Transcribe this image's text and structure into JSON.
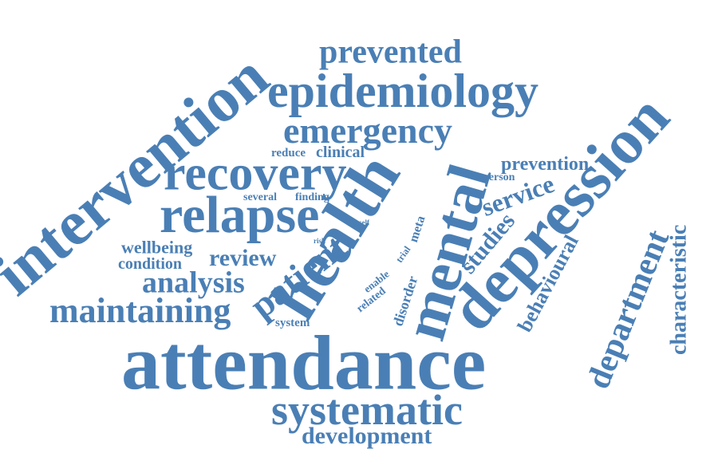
{
  "color": "#4a7fb5",
  "words": [
    {
      "id": "intervention",
      "text": "intervention"
    },
    {
      "id": "prevented",
      "text": "prevented"
    },
    {
      "id": "epidemiology",
      "text": "epidemiology"
    },
    {
      "id": "emergency",
      "text": "emergency"
    },
    {
      "id": "recovery",
      "text": "recovery"
    },
    {
      "id": "relapse",
      "text": "relapse"
    },
    {
      "id": "reduce",
      "text": "reduce"
    },
    {
      "id": "clinical",
      "text": "clinical"
    },
    {
      "id": "several",
      "text": "several"
    },
    {
      "id": "finding",
      "text": "finding"
    },
    {
      "id": "self",
      "text": "self"
    },
    {
      "id": "risk",
      "text": "risk"
    },
    {
      "id": "wellbeing",
      "text": "wellbeing"
    },
    {
      "id": "condition",
      "text": "condition"
    },
    {
      "id": "review",
      "text": "review"
    },
    {
      "id": "analysis",
      "text": "analysis"
    },
    {
      "id": "maintaining",
      "text": "maintaining"
    },
    {
      "id": "system",
      "text": "system"
    },
    {
      "id": "patient",
      "text": "patient"
    },
    {
      "id": "health",
      "text": "health"
    },
    {
      "id": "mental",
      "text": "mental"
    },
    {
      "id": "enable",
      "text": "enable"
    },
    {
      "id": "related",
      "text": "related"
    },
    {
      "id": "trial",
      "text": "trial"
    },
    {
      "id": "meta",
      "text": "meta"
    },
    {
      "id": "disorder",
      "text": "disorder"
    },
    {
      "id": "prevention",
      "text": "prevention"
    },
    {
      "id": "person",
      "text": "person"
    },
    {
      "id": "service",
      "text": "service"
    },
    {
      "id": "studies",
      "text": "studies"
    },
    {
      "id": "depression",
      "text": "depression"
    },
    {
      "id": "behavioural",
      "text": "behavioural"
    },
    {
      "id": "department",
      "text": "department"
    },
    {
      "id": "characteristic",
      "text": "characteristic"
    },
    {
      "id": "attendance",
      "text": "attendance"
    },
    {
      "id": "systematic",
      "text": "systematic"
    },
    {
      "id": "development",
      "text": "development"
    }
  ]
}
